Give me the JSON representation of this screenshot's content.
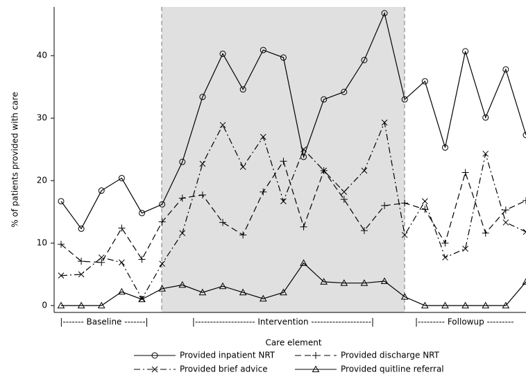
{
  "chart_data": {
    "type": "line",
    "y_label": "% of patients provided with care",
    "categories": [
      null,
      null,
      null,
      null,
      null,
      null,
      null,
      null,
      null,
      null,
      null,
      null,
      null,
      null,
      null,
      null,
      null,
      null,
      null,
      null,
      null,
      null,
      null,
      null
    ],
    "periods": [
      "|------- Baseline -------|",
      "|-------------------- Intervention --------------------|",
      "|--------- Followup ---------"
    ],
    "legend_title": "Care element",
    "series": [
      {
        "name": "Provided inpatient NRT",
        "color": "#000000",
        "marker": "circle",
        "dash": "solid",
        "values": [
          16.7,
          12.3,
          18.4,
          20.4,
          14.8,
          16.2,
          23.0,
          33.4,
          40.3,
          34.6,
          40.9,
          39.7,
          23.8,
          33.0,
          34.2,
          39.3,
          46.8,
          33.0,
          35.9,
          25.3,
          40.7,
          30.1,
          37.8,
          27.3
        ]
      },
      {
        "name": "Provided discharge NRT",
        "color": "#000000",
        "marker": "plus",
        "dash": "longdash",
        "values": [
          9.8,
          7.1,
          6.9,
          12.4,
          7.4,
          13.4,
          17.2,
          17.7,
          13.3,
          11.3,
          18.2,
          23.1,
          12.6,
          21.6,
          17.0,
          12.0,
          16.0,
          16.4,
          15.4,
          10.0,
          21.3,
          11.6,
          15.3,
          16.8
        ]
      },
      {
        "name": "Provided brief advice",
        "color": "#000000",
        "marker": "x",
        "dash": "dashdot",
        "values": [
          4.8,
          5.0,
          7.7,
          6.9,
          1.1,
          6.7,
          11.6,
          22.7,
          28.9,
          22.2,
          27.0,
          16.7,
          25.0,
          21.6,
          18.2,
          21.6,
          29.3,
          11.3,
          16.7,
          7.7,
          9.1,
          24.3,
          13.3,
          11.8
        ]
      },
      {
        "name": "Provided quitline referral",
        "color": "#000000",
        "marker": "triangle",
        "dash": "solid",
        "values": [
          0,
          0,
          0,
          2.2,
          1.0,
          2.7,
          3.3,
          2.1,
          3.1,
          2.1,
          1.1,
          2.1,
          6.8,
          3.8,
          3.6,
          3.6,
          3.9,
          1.4,
          0,
          0,
          0,
          0,
          0,
          3.8
        ]
      }
    ],
    "ylim": [
      -1.1,
      47.8
    ],
    "yticks": [
      0,
      10,
      20,
      30,
      40
    ],
    "grid": false
  }
}
